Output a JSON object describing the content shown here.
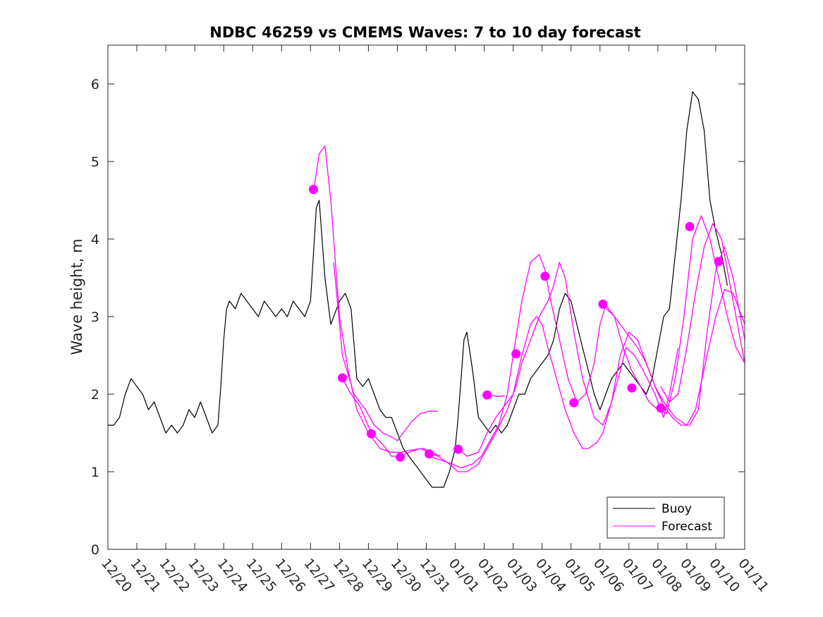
{
  "chart_data": {
    "type": "line",
    "title": "NDBC 46259 vs CMEMS Waves: 7 to 10 day forecast",
    "xlabel": "",
    "ylabel": "Wave height, m",
    "xlim": [
      0,
      22
    ],
    "ylim": [
      0,
      6.5
    ],
    "yticks": [
      0,
      1,
      2,
      3,
      4,
      5,
      6
    ],
    "x_tick_labels": [
      "12/20",
      "12/21",
      "12/22",
      "12/23",
      "12/24",
      "12/25",
      "12/26",
      "12/27",
      "12/28",
      "12/29",
      "12/30",
      "12/31",
      "01/01",
      "01/02",
      "01/03",
      "01/04",
      "01/05",
      "01/06",
      "01/07",
      "01/08",
      "01/09",
      "01/10",
      "01/11"
    ],
    "x_units": "days since 12/20",
    "legend": [
      {
        "label": "Buoy",
        "color": "#000000"
      },
      {
        "label": "Forecast",
        "color": "#ff00ff"
      }
    ],
    "legend_position": "bottom-right",
    "buoy": {
      "name": "Buoy",
      "color": "#000000",
      "x": [
        0,
        0.2,
        0.4,
        0.6,
        0.8,
        1.0,
        1.2,
        1.4,
        1.6,
        1.8,
        2.0,
        2.2,
        2.4,
        2.6,
        2.8,
        3.0,
        3.2,
        3.4,
        3.6,
        3.8,
        3.9,
        4.0,
        4.1,
        4.2,
        4.4,
        4.6,
        4.8,
        5.0,
        5.2,
        5.4,
        5.6,
        5.8,
        6.0,
        6.2,
        6.4,
        6.6,
        6.8,
        7.0,
        7.1,
        7.2,
        7.3,
        7.4,
        7.5,
        7.6,
        7.7,
        7.8,
        8.0,
        8.2,
        8.4,
        8.6,
        8.8,
        9.0,
        9.2,
        9.4,
        9.6,
        9.8,
        10.0,
        10.2,
        10.4,
        10.6,
        10.8,
        11.0,
        11.2,
        11.4,
        11.6,
        11.8,
        12.0,
        12.1,
        12.2,
        12.3,
        12.4,
        12.6,
        12.8,
        13.0,
        13.2,
        13.4,
        13.6,
        13.8,
        14.0,
        14.2,
        14.4,
        14.6,
        14.8,
        15.0,
        15.2,
        15.4,
        15.6,
        15.8,
        16.0,
        16.2,
        16.4,
        16.6,
        16.8,
        17.0,
        17.2,
        17.4,
        17.6,
        17.8,
        18.0,
        18.2,
        18.4,
        18.6,
        18.8,
        19.0,
        19.2,
        19.4,
        19.6,
        19.8,
        20.0,
        20.2,
        20.4,
        20.6,
        20.8,
        21.0,
        21.2,
        21.4
      ],
      "y": [
        1.6,
        1.6,
        1.7,
        2.0,
        2.2,
        2.1,
        2.0,
        1.8,
        1.9,
        1.7,
        1.5,
        1.6,
        1.5,
        1.6,
        1.8,
        1.7,
        1.9,
        1.7,
        1.5,
        1.6,
        2.1,
        2.7,
        3.1,
        3.2,
        3.1,
        3.3,
        3.2,
        3.1,
        3.0,
        3.2,
        3.1,
        3.0,
        3.1,
        3.0,
        3.2,
        3.1,
        3.0,
        3.2,
        3.8,
        4.4,
        4.5,
        4.0,
        3.5,
        3.2,
        2.9,
        3.0,
        3.2,
        3.3,
        3.1,
        2.2,
        2.1,
        2.2,
        2.0,
        1.8,
        1.7,
        1.7,
        1.5,
        1.3,
        1.2,
        1.1,
        1.0,
        0.9,
        0.8,
        0.8,
        0.8,
        1.0,
        1.3,
        1.7,
        2.2,
        2.7,
        2.8,
        2.3,
        1.7,
        1.6,
        1.5,
        1.6,
        1.5,
        1.6,
        1.8,
        2.0,
        2.0,
        2.2,
        2.3,
        2.4,
        2.5,
        2.7,
        3.1,
        3.3,
        3.2,
        2.9,
        2.6,
        2.3,
        2.0,
        1.8,
        2.0,
        2.2,
        2.3,
        2.4,
        2.3,
        2.2,
        2.1,
        2.0,
        2.2,
        2.6,
        3.0,
        3.1,
        3.8,
        4.5,
        5.4,
        5.9,
        5.8,
        5.4,
        4.5,
        4.1,
        3.8,
        3.4
      ]
    },
    "forecast_series": [
      {
        "name": "Forecast",
        "color": "#ff00ff",
        "x": [
          7.1,
          7.3,
          7.5,
          7.7,
          8.0,
          8.3,
          8.6,
          9.0,
          9.4,
          9.8,
          10.1,
          10.5,
          10.9,
          11.2,
          11.5
        ],
        "y": [
          4.6,
          5.1,
          5.2,
          4.5,
          3.0,
          2.3,
          1.8,
          1.5,
          1.3,
          1.25,
          1.25,
          1.28,
          1.3,
          1.25,
          1.2
        ]
      },
      {
        "name": "Forecast",
        "color": "#ff00ff",
        "x": [
          8.1,
          8.4,
          8.7,
          9.1,
          9.5,
          9.8,
          10.1,
          10.4,
          10.8,
          11.1,
          11.4,
          11.8,
          12.1,
          12.4,
          12.8,
          13.1,
          13.4,
          13.8,
          14.1,
          14.3,
          14.7,
          14.9,
          15.2,
          15.4,
          15.6,
          15.8,
          16.1,
          16.4,
          16.8,
          17.1,
          17.4,
          17.7,
          17.9,
          18.2,
          18.5,
          18.9,
          19.2,
          19.4,
          19.7
        ],
        "y": [
          2.2,
          2.0,
          1.85,
          1.5,
          1.35,
          1.2,
          1.2,
          1.25,
          1.3,
          1.25,
          1.2,
          1.1,
          1.0,
          1.0,
          1.1,
          1.3,
          1.5,
          1.8,
          2.1,
          2.4,
          2.8,
          3.0,
          3.2,
          3.4,
          3.7,
          3.5,
          2.8,
          2.2,
          1.7,
          1.6,
          1.9,
          2.3,
          2.6,
          2.5,
          2.3,
          2.0,
          1.7,
          2.0,
          2.6
        ]
      },
      {
        "name": "Forecast",
        "color": "#ff00ff",
        "x": [
          7.8,
          8.1,
          8.5,
          8.9,
          9.2,
          9.5,
          9.8,
          10.0,
          10.2,
          10.5,
          10.8,
          11.1,
          11.4
        ],
        "y": [
          3.7,
          2.5,
          2.0,
          1.8,
          1.6,
          1.5,
          1.45,
          1.4,
          1.5,
          1.65,
          1.75,
          1.78,
          1.78
        ]
      },
      {
        "name": "Forecast",
        "color": "#ff00ff",
        "x": [
          11.1,
          11.5,
          11.9,
          12.2,
          12.6,
          12.9,
          13.2,
          13.5,
          13.8,
          14.0,
          14.3,
          14.6,
          14.9,
          15.1,
          15.3,
          15.6,
          15.9,
          16.2,
          16.5,
          16.8,
          17.0,
          17.2,
          17.5,
          17.8,
          18.1,
          18.4,
          18.7,
          19.0,
          19.3,
          19.6,
          19.9,
          20.2,
          20.5,
          20.8,
          21.1,
          21.4,
          21.7,
          22.0
        ],
        "y": [
          1.2,
          1.15,
          1.1,
          1.05,
          1.1,
          1.2,
          1.4,
          1.6,
          2.0,
          2.5,
          3.2,
          3.7,
          3.8,
          3.6,
          3.2,
          2.7,
          2.2,
          1.9,
          2.0,
          2.4,
          2.9,
          3.15,
          3.0,
          2.6,
          2.3,
          2.1,
          1.9,
          1.8,
          1.75,
          2.2,
          3.0,
          4.0,
          4.3,
          4.0,
          3.5,
          3.0,
          2.6,
          2.4
        ]
      },
      {
        "name": "Forecast",
        "color": "#ff00ff",
        "x": [
          12.1,
          12.4,
          12.8,
          13.1,
          13.4,
          13.7,
          14.0,
          14.3,
          14.6,
          14.8,
          15.0,
          15.2,
          15.5,
          15.8,
          16.1,
          16.4,
          16.6,
          16.9,
          17.1,
          17.4,
          17.7,
          18.0,
          18.3,
          18.6,
          18.9,
          19.2,
          19.5,
          19.8,
          20.1,
          20.4,
          20.7,
          21.0,
          21.3,
          21.6,
          22.0
        ],
        "y": [
          1.3,
          1.2,
          1.25,
          1.5,
          1.7,
          1.85,
          2.0,
          2.5,
          2.9,
          3.0,
          2.9,
          2.6,
          2.2,
          1.8,
          1.5,
          1.3,
          1.3,
          1.38,
          1.5,
          1.9,
          2.5,
          2.8,
          2.7,
          2.4,
          2.1,
          1.85,
          1.7,
          1.6,
          1.6,
          1.8,
          2.8,
          3.6,
          3.9,
          3.5,
          2.7
        ]
      },
      {
        "name": "Forecast",
        "color": "#ff00ff",
        "x": [
          13.1,
          13.3,
          13.5,
          13.7
        ],
        "y": [
          2.0,
          1.98,
          1.97,
          1.98
        ]
      },
      {
        "name": "Forecast",
        "color": "#ff00ff",
        "x": [
          17.1,
          17.5,
          17.9,
          18.3,
          18.6,
          18.9,
          19.2,
          19.6,
          20.0,
          20.3,
          20.7,
          21.0,
          21.3,
          21.6,
          22.0
        ],
        "y": [
          3.15,
          3.0,
          2.8,
          2.6,
          2.4,
          2.1,
          1.9,
          1.7,
          1.6,
          1.8,
          2.5,
          3.0,
          3.35,
          3.3,
          2.9
        ]
      },
      {
        "name": "Forecast",
        "color": "#ff00ff",
        "x": [
          19.1,
          19.4,
          19.7,
          20.0,
          20.3,
          20.6,
          20.9,
          21.2,
          21.5,
          21.8,
          22.0
        ],
        "y": [
          2.1,
          1.9,
          2.0,
          2.6,
          3.3,
          3.9,
          4.2,
          4.0,
          3.4,
          2.8,
          2.4
        ]
      }
    ],
    "forecast_markers": {
      "x": [
        7.1,
        8.1,
        9.1,
        10.1,
        11.1,
        12.1,
        13.1,
        14.1,
        15.1,
        16.1,
        17.1,
        18.1,
        19.1,
        20.1,
        21.1
      ],
      "y": [
        4.64,
        2.21,
        1.49,
        1.19,
        1.23,
        1.29,
        1.99,
        2.52,
        3.52,
        1.89,
        3.16,
        2.08,
        1.82,
        4.16,
        3.71
      ]
    }
  }
}
